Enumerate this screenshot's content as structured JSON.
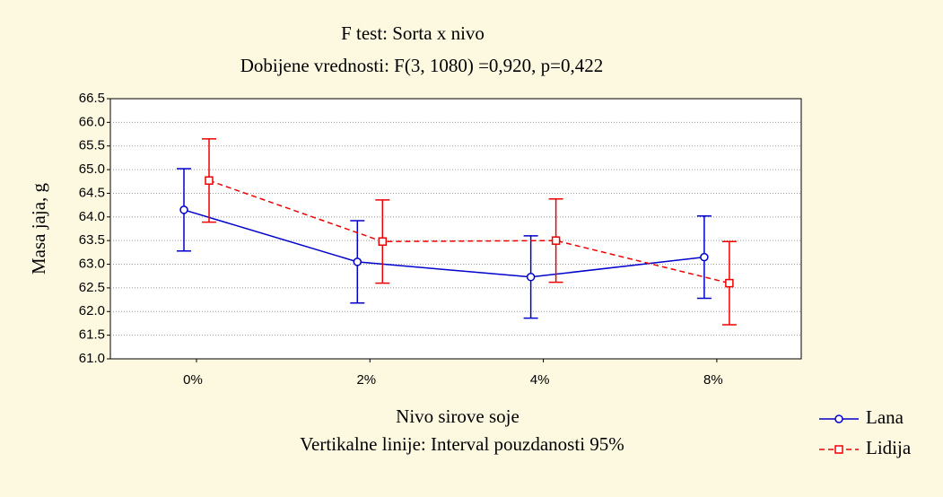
{
  "chart_data": {
    "type": "errorbar",
    "title": "F test: Sorta x nivo",
    "subtitle": "Dobijene vrednosti: F(3, 1080) =0,920, p=0,422",
    "y_label": "Masa jaja, g",
    "x_label": "Nivo sirove soje",
    "note": "Vertikalne linije: Interval pouzdanosti 95%",
    "categories": [
      "0%",
      "2%",
      "4%",
      "8%"
    ],
    "series": [
      {
        "name": "Lana",
        "color": "#0000cc",
        "dashed": false,
        "marker": "circle",
        "values": [
          64.15,
          63.05,
          62.73,
          63.15
        ],
        "errors": [
          0.87,
          0.87,
          0.87,
          0.87
        ]
      },
      {
        "name": "Lidija",
        "color": "#ee0000",
        "dashed": true,
        "marker": "square",
        "values": [
          64.77,
          63.48,
          63.5,
          62.6
        ],
        "errors": [
          0.88,
          0.88,
          0.88,
          0.88
        ]
      }
    ],
    "ylim": [
      61,
      66.5
    ],
    "yticks": [
      {
        "value": 61,
        "label": "61.0"
      },
      61.5,
      {
        "value": 62,
        "label": "62.0"
      },
      62.5,
      {
        "value": 63,
        "label": "63.0"
      },
      63.5,
      {
        "value": 64,
        "label": "64.0"
      },
      64.5,
      {
        "value": 65,
        "label": "65.0"
      },
      65.5,
      {
        "value": 66,
        "label": "66.0"
      },
      66.5
    ],
    "grid": true,
    "legend": "lower right"
  }
}
